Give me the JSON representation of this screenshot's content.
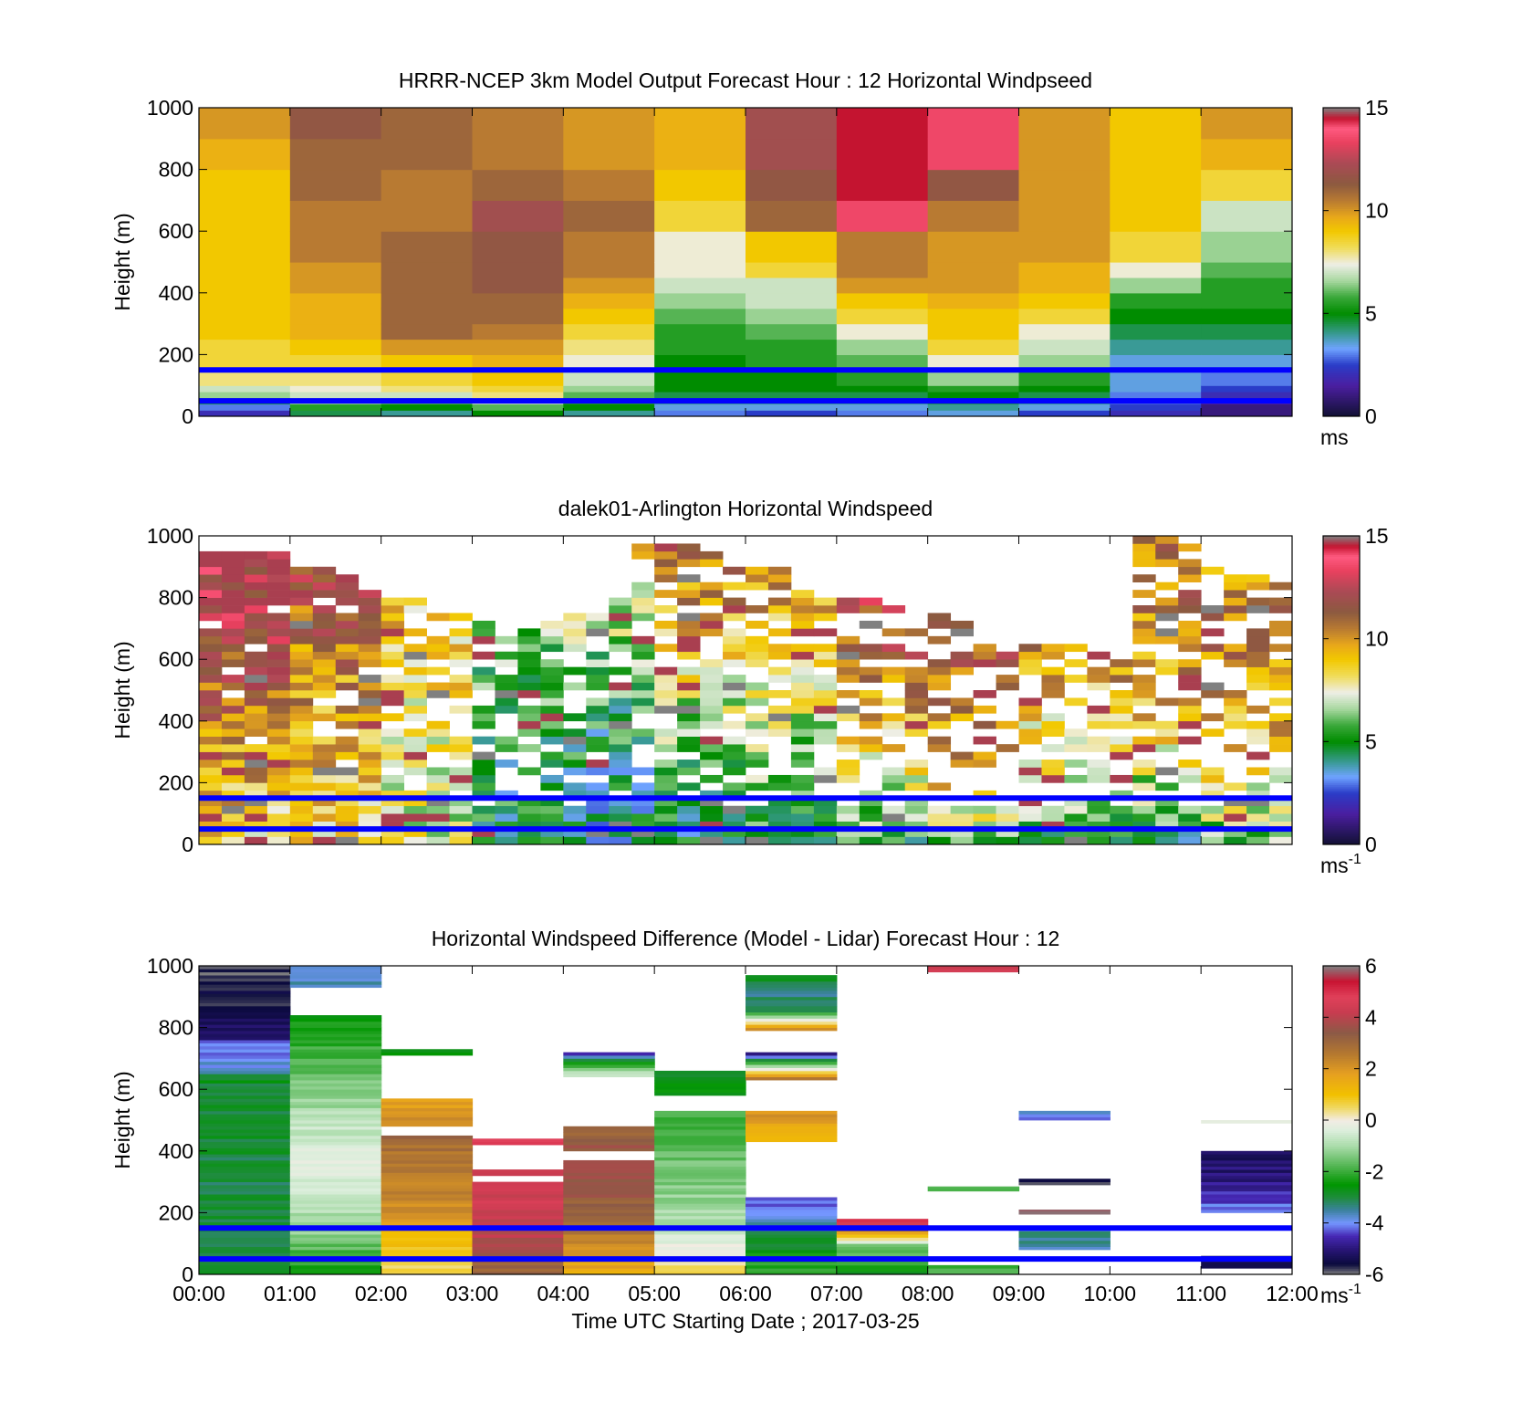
{
  "figure": {
    "xlabel": "Time UTC  Starting Date ; 2017-03-25",
    "line_color": "#0000ff"
  },
  "chart_data": [
    {
      "type": "heatmap",
      "title": "HRRR-NCEP 3km Model Output   Forecast Hour : 12 Horizontal Windpseed",
      "ylabel": "Height (m)",
      "xlim": [
        "00:00",
        "12:00"
      ],
      "ylim": [
        0,
        1000
      ],
      "yticks": [
        "0",
        "200",
        "400",
        "600",
        "800",
        "1000"
      ],
      "xticks": [
        "",
        "",
        "",
        "",
        "",
        "",
        "",
        "",
        "",
        "",
        "",
        "",
        ""
      ],
      "colorbar": {
        "range": [
          0,
          15
        ],
        "ticks": [
          "0",
          "5",
          "10",
          "15"
        ],
        "unit": "ms",
        "unit_sup": "",
        "scheme": "speed"
      },
      "reference_lines_m": [
        50,
        150
      ],
      "grid": false,
      "time_bins": [
        "00:00",
        "01:00",
        "02:00",
        "03:00",
        "04:00",
        "05:00",
        "06:00",
        "07:00",
        "08:00",
        "09:00",
        "10:00",
        "11:00"
      ],
      "height_levels_m": [
        0,
        20,
        40,
        60,
        80,
        100,
        150,
        200,
        250,
        300,
        350,
        400,
        450,
        500,
        600,
        700,
        800,
        900,
        1000
      ],
      "values": [
        [
          2.0,
          3.0,
          4.5,
          6.5,
          7.0,
          8.0,
          8.5,
          8.5,
          9.0,
          9.0,
          9.0,
          9.0,
          9.0,
          9.0,
          9.0,
          9.0,
          9.5,
          10.0
        ],
        [
          4.5,
          5.5,
          6.5,
          7.0,
          7.5,
          8.0,
          8.5,
          9.0,
          9.5,
          9.5,
          9.5,
          10.0,
          10.0,
          10.5,
          10.5,
          11.0,
          11.0,
          11.5
        ],
        [
          4.0,
          5.0,
          6.0,
          7.0,
          8.0,
          8.5,
          9.0,
          10.0,
          11.0,
          11.0,
          11.0,
          11.0,
          11.0,
          11.0,
          10.5,
          10.5,
          11.0,
          11.0
        ],
        [
          5.0,
          6.0,
          7.0,
          8.0,
          8.5,
          9.0,
          9.5,
          10.0,
          10.5,
          11.0,
          11.0,
          11.5,
          11.5,
          11.5,
          12.0,
          11.0,
          10.5,
          10.5
        ],
        [
          4.0,
          5.0,
          5.5,
          6.0,
          6.5,
          7.0,
          7.5,
          8.0,
          8.5,
          9.0,
          9.5,
          10.0,
          10.5,
          10.5,
          11.0,
          10.5,
          10.0,
          10.0
        ],
        [
          3.0,
          3.5,
          4.0,
          4.5,
          5.0,
          5.0,
          5.0,
          5.5,
          5.5,
          6.0,
          6.5,
          7.0,
          7.5,
          7.5,
          8.5,
          9.0,
          9.5,
          9.5
        ],
        [
          2.5,
          3.5,
          4.0,
          4.5,
          5.0,
          5.0,
          5.5,
          5.5,
          6.0,
          6.5,
          7.0,
          7.0,
          8.5,
          9.0,
          11.0,
          11.5,
          12.0,
          12.0
        ],
        [
          3.0,
          3.5,
          4.0,
          4.5,
          5.0,
          5.5,
          6.0,
          6.5,
          7.5,
          8.5,
          9.0,
          10.0,
          10.5,
          10.5,
          13.5,
          14.5,
          14.5,
          14.5
        ],
        [
          3.5,
          4.0,
          4.5,
          5.0,
          5.5,
          6.5,
          7.5,
          8.5,
          9.0,
          9.0,
          9.5,
          10.0,
          10.0,
          10.0,
          10.5,
          11.5,
          13.5,
          13.5
        ],
        [
          2.5,
          3.5,
          4.0,
          4.5,
          5.0,
          5.5,
          6.5,
          7.0,
          7.5,
          8.5,
          9.0,
          9.5,
          9.5,
          10.0,
          10.0,
          10.0,
          10.0,
          10.0
        ],
        [
          2.0,
          2.5,
          2.8,
          3.0,
          3.5,
          3.5,
          3.5,
          4.0,
          4.5,
          5.0,
          5.5,
          6.5,
          7.5,
          8.5,
          9.0,
          9.0,
          9.0,
          9.0
        ],
        [
          1.0,
          1.0,
          1.5,
          2.0,
          2.5,
          3.0,
          3.5,
          4.0,
          4.5,
          5.0,
          5.5,
          5.5,
          6.0,
          6.5,
          7.0,
          8.5,
          9.5,
          10.0
        ]
      ]
    },
    {
      "type": "heatmap",
      "title": "dalek01-Arlington  Horizontal Windspeed",
      "ylabel": "Height (m)",
      "xlim": [
        "00:00",
        "12:00"
      ],
      "ylim": [
        0,
        1000
      ],
      "yticks": [
        "0",
        "200",
        "400",
        "600",
        "800",
        "1000"
      ],
      "xticks": [
        "",
        "",
        "",
        "",
        "",
        "",
        "",
        "",
        "",
        "",
        "",
        "",
        ""
      ],
      "colorbar": {
        "range": [
          0,
          15
        ],
        "ticks": [
          "0",
          "5",
          "10",
          "15"
        ],
        "unit": "ms",
        "unit_sup": "-1",
        "scheme": "speed"
      },
      "reference_lines_m": [
        50,
        150
      ],
      "grid": false,
      "time_bins_per_hour": 4,
      "gate_spacing_m": 25,
      "profile_anchor_heights_m": [
        0,
        200,
        400,
        600,
        800,
        1000
      ],
      "profiles_by_hour": [
        [
          8.5,
          9.5,
          10.5,
          11.5,
          12.5,
          13.0
        ],
        [
          8.5,
          9.0,
          9.5,
          10.5,
          11.5,
          12.0
        ],
        [
          7.5,
          7.5,
          8.0,
          8.5,
          9.0,
          9.5
        ],
        [
          4.5,
          5.0,
          5.5,
          6.0,
          7.0,
          8.0
        ],
        [
          4.0,
          4.5,
          5.0,
          6.0,
          7.5,
          9.0
        ],
        [
          4.5,
          5.5,
          6.5,
          8.5,
          10.0,
          11.0
        ],
        [
          5.0,
          6.0,
          7.0,
          8.5,
          10.0,
          11.0
        ],
        [
          5.5,
          7.5,
          9.5,
          11.0,
          12.0,
          12.0
        ],
        [
          6.0,
          9.0,
          10.5,
          11.5,
          12.0,
          12.5
        ],
        [
          5.0,
          7.0,
          8.5,
          10.0,
          10.5,
          11.0
        ],
        [
          5.0,
          7.0,
          9.0,
          10.0,
          10.5,
          11.0
        ],
        [
          6.0,
          8.0,
          9.5,
          10.5,
          10.0,
          10.0
        ]
      ],
      "data_top_m_by_quarter_hour": [
        930,
        930,
        930,
        930,
        900,
        880,
        860,
        820,
        800,
        780,
        760,
        740,
        720,
        700,
        700,
        720,
        740,
        760,
        800,
        960,
        990,
        990,
        950,
        920,
        900,
        880,
        850,
        820,
        800,
        780,
        760,
        740,
        740,
        720,
        700,
        700,
        680,
        660,
        640,
        620,
        600,
        980,
        990,
        960,
        900,
        880,
        860,
        840
      ],
      "missing_fraction_by_hour": [
        0.05,
        0.08,
        0.25,
        0.3,
        0.25,
        0.2,
        0.35,
        0.45,
        0.5,
        0.4,
        0.4,
        0.4
      ],
      "fill_from_top_m_by_hour": [
        730,
        990,
        990,
        990,
        990,
        990,
        990,
        990,
        990,
        990,
        990,
        990
      ]
    },
    {
      "type": "heatmap",
      "title": "Horizontal Windspeed Difference (Model - Lidar) Forecast Hour : 12",
      "ylabel": "Height (m)",
      "xlim": [
        "00:00",
        "12:00"
      ],
      "ylim": [
        0,
        1000
      ],
      "yticks": [
        "0",
        "200",
        "400",
        "600",
        "800",
        "1000"
      ],
      "xticks": [
        "00:00",
        "01:00",
        "02:00",
        "03:00",
        "04:00",
        "05:00",
        "06:00",
        "07:00",
        "08:00",
        "09:00",
        "10:00",
        "11:00",
        "12:00"
      ],
      "colorbar": {
        "range": [
          -6,
          6
        ],
        "ticks": [
          "-6",
          "-4",
          "-2",
          "0",
          "2",
          "4",
          "6"
        ],
        "unit": "ms",
        "unit_sup": "-1",
        "scheme": "diff"
      },
      "reference_lines_m": [
        50,
        150
      ],
      "grid": false,
      "segments": [
        {
          "bin": 0,
          "from_m": 0,
          "to_m": 650,
          "profile_values": [
            -3.0,
            -3.0,
            -2.8
          ]
        },
        {
          "bin": 0,
          "from_m": 650,
          "to_m": 760,
          "profile_values": [
            -3.8,
            -4.2
          ]
        },
        {
          "bin": 0,
          "from_m": 760,
          "to_m": 1000,
          "profile_values": [
            -5.0,
            -5.6,
            -5.8
          ]
        },
        {
          "bin": 1,
          "from_m": 0,
          "to_m": 320,
          "profile_values": [
            -2.5,
            -1.0,
            -0.5
          ]
        },
        {
          "bin": 1,
          "from_m": 320,
          "to_m": 420,
          "profile_values": [
            -0.2
          ]
        },
        {
          "bin": 1,
          "from_m": 420,
          "to_m": 840,
          "profile_values": [
            -0.5,
            -1.5,
            -2.5
          ]
        },
        {
          "bin": 1,
          "from_m": 930,
          "to_m": 1000,
          "profile_values": [
            -3.5,
            -4.0
          ]
        },
        {
          "bin": 2,
          "from_m": 0,
          "to_m": 160,
          "profile_values": [
            0.5,
            1.5
          ]
        },
        {
          "bin": 2,
          "from_m": 160,
          "to_m": 450,
          "profile_values": [
            2.0,
            3.0
          ]
        },
        {
          "bin": 2,
          "from_m": 480,
          "to_m": 570,
          "profile_values": [
            2.2,
            1.8
          ]
        },
        {
          "bin": 2,
          "from_m": 710,
          "to_m": 730,
          "profile_values": [
            -2.5
          ]
        },
        {
          "bin": 3,
          "from_m": 0,
          "to_m": 300,
          "profile_values": [
            3.0,
            4.2,
            4.5
          ]
        },
        {
          "bin": 3,
          "from_m": 320,
          "to_m": 340,
          "profile_values": [
            4.5
          ]
        },
        {
          "bin": 3,
          "from_m": 420,
          "to_m": 440,
          "profile_values": [
            4.8
          ]
        },
        {
          "bin": 4,
          "from_m": 0,
          "to_m": 370,
          "profile_values": [
            1.5,
            3.0,
            4.0
          ]
        },
        {
          "bin": 4,
          "from_m": 400,
          "to_m": 480,
          "profile_values": [
            3.5,
            3.0
          ]
        },
        {
          "bin": 4,
          "from_m": 640,
          "to_m": 720,
          "profile_values": [
            -0.5,
            -2.5,
            -5.0
          ]
        },
        {
          "bin": 5,
          "from_m": 0,
          "to_m": 530,
          "profile_values": [
            0.5,
            -1.0,
            -1.5,
            -2.0
          ]
        },
        {
          "bin": 5,
          "from_m": 580,
          "to_m": 660,
          "profile_values": [
            -2.5,
            -3.0
          ]
        },
        {
          "bin": 6,
          "from_m": 0,
          "to_m": 250,
          "profile_values": [
            -2.0,
            -3.0,
            -4.5
          ]
        },
        {
          "bin": 6,
          "from_m": 430,
          "to_m": 530,
          "profile_values": [
            1.0,
            2.2
          ]
        },
        {
          "bin": 6,
          "from_m": 630,
          "to_m": 720,
          "profile_values": [
            2.5,
            -5.8
          ]
        },
        {
          "bin": 6,
          "from_m": 790,
          "to_m": 970,
          "profile_values": [
            2.5,
            -3.0,
            -3.5,
            -2.5
          ]
        },
        {
          "bin": 7,
          "from_m": 0,
          "to_m": 180,
          "profile_values": [
            -2.5,
            -1.5,
            6.0
          ]
        },
        {
          "bin": 8,
          "from_m": 0,
          "to_m": 30,
          "profile_values": [
            -2.0
          ]
        },
        {
          "bin": 8,
          "from_m": 270,
          "to_m": 285,
          "profile_values": [
            -1.8
          ]
        },
        {
          "bin": 8,
          "from_m": 980,
          "to_m": 1000,
          "profile_values": [
            4.5
          ]
        },
        {
          "bin": 9,
          "from_m": 80,
          "to_m": 150,
          "profile_values": [
            -3.5,
            -3.5
          ]
        },
        {
          "bin": 9,
          "from_m": 195,
          "to_m": 210,
          "profile_values": [
            6.0
          ]
        },
        {
          "bin": 9,
          "from_m": 290,
          "to_m": 310,
          "profile_values": [
            -5.8
          ]
        },
        {
          "bin": 9,
          "from_m": 500,
          "to_m": 530,
          "profile_values": [
            -4.5,
            -3.0
          ]
        },
        {
          "bin": 11,
          "from_m": 20,
          "to_m": 60,
          "profile_values": [
            -5.5
          ]
        },
        {
          "bin": 11,
          "from_m": 200,
          "to_m": 400,
          "profile_values": [
            -4.0,
            -5.0,
            -5.2
          ]
        },
        {
          "bin": 11,
          "from_m": 490,
          "to_m": 500,
          "profile_values": [
            -0.5
          ]
        }
      ]
    }
  ]
}
